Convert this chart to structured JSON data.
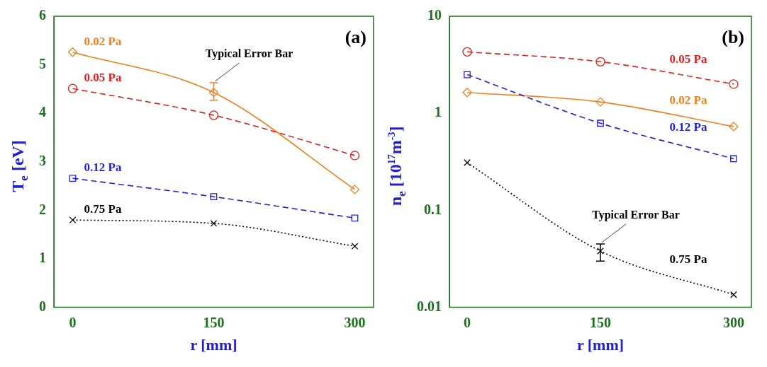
{
  "chart_data": [
    {
      "type": "line",
      "annotations": [
        "(a)",
        {
          "text": "Typical Error Bar",
          "x": 150,
          "y": 4.63
        }
      ],
      "xlabel": "r [mm]",
      "ylabel": "T$_{e}$ [eV]",
      "x": [
        0,
        150,
        300
      ],
      "xlim": [
        -20,
        320
      ],
      "xticks": [
        0,
        150,
        300
      ],
      "ylim": [
        0,
        6
      ],
      "yticks": [
        0,
        1,
        2,
        3,
        4,
        5,
        6
      ],
      "grid": false,
      "legend": false,
      "series": [
        {
          "name": "0.02 Pa",
          "color": "#f08020",
          "values": [
            5.26,
            4.43,
            2.43
          ],
          "errors": [
            null,
            [
              4.27,
              4.63
            ],
            null
          ],
          "marker": "diamond",
          "line_style": "solid"
        },
        {
          "name": "0.05 Pa",
          "color": "#e02020",
          "values": [
            4.51,
            3.96,
            3.13
          ],
          "marker": "circle",
          "line_style": "dashed"
        },
        {
          "name": "0.12 Pa",
          "color": "#2020e0",
          "values": [
            2.66,
            2.28,
            1.84
          ],
          "marker": "square",
          "line_style": "dashed"
        },
        {
          "name": "0.75 Pa",
          "color": "#000000",
          "values": [
            1.8,
            1.73,
            1.26
          ],
          "marker": "cross",
          "line_style": "dotted"
        }
      ]
    },
    {
      "type": "line",
      "annotations": [
        "(b)",
        {
          "text": "Typical Error Bar",
          "x": 150,
          "y": 0.045
        }
      ],
      "xlabel": "r [mm]",
      "ylabel": "n$_{e}$ [10$^{17}$m$^{-3}$]",
      "x": [
        0,
        150,
        300
      ],
      "xlim": [
        -20,
        320
      ],
      "xticks": [
        0,
        150,
        300
      ],
      "ylim": [
        0.01,
        10
      ],
      "yticks": [
        0.01,
        0.1,
        1,
        10
      ],
      "log": "y",
      "grid": false,
      "legend": false,
      "series": [
        {
          "name": "0.05 Pa",
          "color": "#e02020",
          "values": [
            4.3,
            3.4,
            2.0
          ],
          "marker": "circle",
          "line_style": "dashed"
        },
        {
          "name": "0.12 Pa",
          "color": "#2020e0",
          "values": [
            2.5,
            0.79,
            0.34
          ],
          "marker": "square",
          "line_style": "dashed"
        },
        {
          "name": "0.02 Pa",
          "color": "#f08020",
          "values": [
            1.64,
            1.31,
            0.73
          ],
          "marker": "diamond",
          "line_style": "solid"
        },
        {
          "name": "0.75 Pa",
          "color": "#000000",
          "values": [
            0.31,
            0.038,
            0.0135
          ],
          "errors": [
            null,
            [
              0.03,
              0.045
            ],
            null
          ],
          "marker": "cross",
          "line_style": "dotted"
        }
      ]
    }
  ]
}
